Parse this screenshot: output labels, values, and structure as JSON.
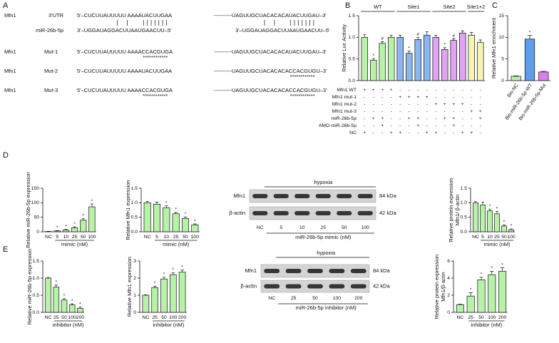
{
  "panel_labels": [
    "A",
    "B",
    "C",
    "D",
    "E"
  ],
  "sequence_alignment": {
    "rows": [
      {
        "label": "Mfn1",
        "sublabel": "3'UTR",
        "left": [
          {
            "text": "5'–CUCUUAUUUUU AAAA"
          },
          {
            "text": "UACUUGA",
            "color": "#e41a1c"
          },
          {
            "text": "A"
          }
        ],
        "right": [
          {
            "text": "----------UAGUUGCUACACACA"
          },
          {
            "text": "UACUUGA",
            "color": "#e41a1c"
          },
          {
            "text": "U–3'"
          }
        ]
      },
      {
        "sublabel": "miR-26b-5p",
        "left": [
          {
            "text": "3'–UGGAUAGGACUUA"
          },
          {
            "text": "AUGAACUU",
            "color": "#1fa34a"
          },
          {
            "text": "–5'"
          }
        ],
        "right": [
          {
            "text": "3'–UGGAUAGGACUUA"
          },
          {
            "text": "AUGAACUU",
            "color": "#1fa34a"
          },
          {
            "text": "–5'"
          }
        ]
      },
      {
        "label": "Mfn1",
        "sublabel": "Mut-1",
        "left": [
          {
            "text": "5'–CUCUUAUUUUU AAAA"
          },
          {
            "text": "CCACGUG",
            "color": "#8a2be2",
            "stars": "************"
          },
          {
            "text": "A"
          }
        ],
        "right": [
          {
            "text": "----------UAGUUGCUACACACA"
          },
          {
            "text": "UACUUGA",
            "color": "#e41a1c"
          },
          {
            "text": "U–3'"
          }
        ]
      },
      {
        "label": "Mfn1",
        "sublabel": "Mut-2",
        "left": [
          {
            "text": "5'–CUCUUAUUUUU AAAA"
          },
          {
            "text": "UACUUGA",
            "color": "#e41a1c"
          },
          {
            "text": "A"
          }
        ],
        "right": [
          {
            "text": "----------UAGUUGCUACACACA"
          },
          {
            "text": "CCACGUG",
            "color": "#8a2be2",
            "stars": "************"
          },
          {
            "text": "U–3'"
          }
        ]
      },
      {
        "label": "Mfn1",
        "sublabel": "Mut-3",
        "left": [
          {
            "text": "5'–CUCUUAUUUUU AAAA"
          },
          {
            "text": "CCACGUG",
            "color": "#8a2be2",
            "stars": "************"
          },
          {
            "text": "A"
          }
        ],
        "right": [
          {
            "text": "----------UAGUUGCUACACACA"
          },
          {
            "text": "CCACGUG",
            "color": "#8a2be2",
            "stars": "************"
          },
          {
            "text": "U–3'"
          }
        ]
      }
    ]
  },
  "chart_data": [
    {
      "type": "bar",
      "ylabel": "Relative Luc Activity",
      "ylim": [
        0,
        1.5
      ],
      "yticks": [
        {
          "value": 0,
          "label": "0.0"
        },
        {
          "value": 0.5,
          "label": "0.5"
        },
        {
          "value": 1,
          "label": "1.0"
        },
        {
          "value": 1.5,
          "label": "1.5"
        }
      ],
      "series": [
        {
          "name": "WT",
          "color": "#b8f2a8",
          "values": [
            1.0,
            0.47,
            0.86,
            1.0
          ],
          "errors": [
            0.06,
            0.04,
            0.04,
            0.05
          ],
          "significance": [
            null,
            "*",
            "#",
            null
          ]
        },
        {
          "name": "Site1",
          "color": "#8ab8ee",
          "values": [
            1.0,
            0.63,
            0.95,
            1.05
          ],
          "errors": [
            0.05,
            0.05,
            0.05,
            0.08
          ],
          "significance": [
            null,
            "*",
            "#",
            null
          ]
        },
        {
          "name": "Site2",
          "color": "#e0a4f2",
          "values": [
            1.0,
            0.72,
            0.93,
            1.1
          ],
          "errors": [
            0.05,
            0.04,
            0.04,
            0.05
          ],
          "significance": [
            null,
            "*",
            "#",
            null
          ]
        },
        {
          "name": "Site1+2",
          "color": "#f6f4b4",
          "values": [
            1.05,
            0.88
          ],
          "errors": [
            0.06,
            0.06
          ],
          "significance": [
            null,
            null
          ]
        }
      ],
      "treatments": [
        {
          "label": "Mfn1 WT",
          "signs": [
            "+",
            "+",
            "+",
            "+",
            "-",
            "-",
            "-",
            "-",
            "-",
            "-",
            "-",
            "-",
            "-",
            "-"
          ]
        },
        {
          "label": "Mfn1 mut-1",
          "signs": [
            "-",
            "-",
            "-",
            "-",
            "+",
            "+",
            "+",
            "+",
            "-",
            "-",
            "-",
            "-",
            "-",
            "-"
          ]
        },
        {
          "label": "Mfn1 mut-2",
          "signs": [
            "-",
            "-",
            "-",
            "-",
            "-",
            "-",
            "-",
            "-",
            "+",
            "+",
            "+",
            "+",
            "-",
            "-"
          ]
        },
        {
          "label": "Mfn1 mut-3",
          "signs": [
            "-",
            "-",
            "-",
            "-",
            "-",
            "-",
            "-",
            "-",
            "-",
            "-",
            "-",
            "-",
            "+",
            "+"
          ]
        },
        {
          "label": "miR-26b-5p",
          "signs": [
            "-",
            "+",
            "+",
            "-",
            "-",
            "+",
            "+",
            "-",
            "-",
            "+",
            "+",
            "-",
            "-",
            "+"
          ]
        },
        {
          "label": "AMO-miR-26b-5p",
          "signs": [
            "-",
            "-",
            "+",
            "-",
            "-",
            "-",
            "+",
            "-",
            "-",
            "-",
            "+",
            "-",
            "-",
            "-"
          ]
        },
        {
          "label": "NC",
          "signs": [
            "+",
            "-",
            "-",
            "+",
            "+",
            "-",
            "-",
            "+",
            "+",
            "-",
            "-",
            "+",
            "+",
            "-"
          ]
        }
      ]
    },
    {
      "type": "bar",
      "ylabel": "Relative Mfn1 enrichment",
      "categories": [
        "Bio-NC",
        "Bio-miR-26b-5p-WT",
        "Bio-miR-26b-5p-Mut"
      ],
      "values": [
        1.0,
        9.6,
        2.0
      ],
      "errors": [
        0.1,
        0.8,
        0.15
      ],
      "significance": [
        null,
        "*",
        null
      ],
      "colors": [
        "#b8f2a8",
        "#5f9de8",
        "#d980ee"
      ],
      "ylim": [
        0,
        15
      ],
      "yticks": [
        0,
        5,
        10,
        15
      ]
    },
    {
      "type": "bar",
      "ylabel": "Relative miR-26b-5p expression",
      "xlabel": "mimic (nM)",
      "categories": [
        "NC",
        "5",
        "10",
        "25",
        "50",
        "100"
      ],
      "values": [
        1,
        3,
        6,
        14,
        40,
        86
      ],
      "errors": [
        0.5,
        1,
        2,
        3,
        5,
        10
      ],
      "significance": [
        null,
        "*",
        "*",
        "*",
        "*",
        "*"
      ],
      "color": "#b8f2a8",
      "ylim": [
        0,
        150
      ],
      "yticks": [
        0,
        50,
        100,
        150
      ]
    },
    {
      "type": "bar",
      "ylabel": "Relative Mfn1 expression",
      "xlabel": "mimic (nM)",
      "categories": [
        "NC",
        "5",
        "10",
        "25",
        "50",
        "100"
      ],
      "values": [
        1.0,
        0.95,
        0.83,
        0.62,
        0.46,
        0.24
      ],
      "errors": [
        0.05,
        0.07,
        0.06,
        0.05,
        0.05,
        0.03
      ],
      "significance": [
        null,
        null,
        "*",
        "*",
        "*",
        "*"
      ],
      "color": "#b8f2a8",
      "ylim": [
        0,
        1.5
      ],
      "yticks": [
        {
          "value": 0,
          "label": "0.0"
        },
        {
          "value": 0.5,
          "label": "0.5"
        },
        {
          "value": 1,
          "label": "1.0"
        },
        {
          "value": 1.5,
          "label": "1.5"
        }
      ]
    },
    {
      "type": "bar",
      "ylabel": [
        "Relative protein expression",
        "Mfn1/ β-actin"
      ],
      "xlabel": "mimic (nM)",
      "categories": [
        "NC",
        "5",
        "10",
        "25",
        "50",
        "100"
      ],
      "values": [
        1.0,
        0.92,
        0.72,
        0.62,
        0.2,
        0.07
      ],
      "errors": [
        0.05,
        0.1,
        0.06,
        0.08,
        0.04,
        0.03
      ],
      "significance": [
        null,
        null,
        "*",
        "*",
        "*",
        "*"
      ],
      "color": "#b8f2a8",
      "ylim": [
        0,
        1.5
      ],
      "yticks": [
        {
          "value": 0,
          "label": "0.0"
        },
        {
          "value": 0.5,
          "label": "0.5"
        },
        {
          "value": 1,
          "label": "1.0"
        },
        {
          "value": 1.5,
          "label": "1.5"
        }
      ]
    },
    {
      "type": "bar",
      "ylabel": "Relative miR-26b-5p expression",
      "xlabel": "inhibitor (nM)",
      "categories": [
        "NC",
        "25",
        "50",
        "100",
        "200"
      ],
      "values": [
        1.0,
        0.74,
        0.36,
        0.22,
        0.12
      ],
      "errors": [
        0.02,
        0.06,
        0.04,
        0.03,
        0.03
      ],
      "significance": [
        null,
        "*",
        "*",
        "*",
        "*"
      ],
      "color": "#b8f2a8",
      "ylim": [
        0,
        1.5
      ],
      "yticks": [
        {
          "value": 0,
          "label": "0.0"
        },
        {
          "value": 0.5,
          "label": "0.5"
        },
        {
          "value": 1,
          "label": "1.0"
        },
        {
          "value": 1.5,
          "label": "1.5"
        }
      ]
    },
    {
      "type": "bar",
      "ylabel": "Relative Mfn1 expression",
      "xlabel": "inhibitor (nM)",
      "categories": [
        "NC",
        "25",
        "50",
        "100",
        "200"
      ],
      "values": [
        1.0,
        1.45,
        1.95,
        2.2,
        2.35
      ],
      "errors": [
        0.02,
        0.08,
        0.1,
        0.12,
        0.12
      ],
      "significance": [
        null,
        "*",
        "*",
        "*",
        "*"
      ],
      "color": "#b8f2a8",
      "ylim": [
        0,
        3
      ],
      "yticks": [
        0,
        1,
        2,
        3
      ]
    },
    {
      "type": "bar",
      "ylabel": [
        "Relative protein expression",
        "Mfn1/β-actin"
      ],
      "xlabel": "inhibitor (nM)",
      "categories": [
        "NC",
        "25",
        "50",
        "100",
        "200"
      ],
      "values": [
        0.9,
        1.9,
        3.8,
        4.4,
        4.8
      ],
      "errors": [
        0.05,
        0.4,
        0.3,
        0.4,
        0.4
      ],
      "significance": [
        null,
        "*",
        "*",
        "*",
        "*"
      ],
      "color": "#b8f2a8",
      "ylim": [
        0,
        6
      ],
      "yticks": [
        0,
        2,
        4,
        6
      ]
    }
  ],
  "blots": [
    {
      "condition": "hypoxia",
      "rows": [
        {
          "label": "Mfn1",
          "size": "84 kDa"
        },
        {
          "label": "β-actin",
          "size": "42 kDa"
        }
      ],
      "lanes": [
        "NC",
        "5",
        "10",
        "25",
        "50",
        "100"
      ],
      "caption": "miR-26b-5p mimic (nM)"
    },
    {
      "condition": "hypoxia",
      "rows": [
        {
          "label": "Mfn1",
          "size": "84 kDa"
        },
        {
          "label": "β-actin",
          "size": "42 kDa"
        }
      ],
      "lanes": [
        "NC",
        "25",
        "50",
        "100",
        "200"
      ],
      "caption": "miR-26b-5p inhibitor (nM)"
    }
  ]
}
